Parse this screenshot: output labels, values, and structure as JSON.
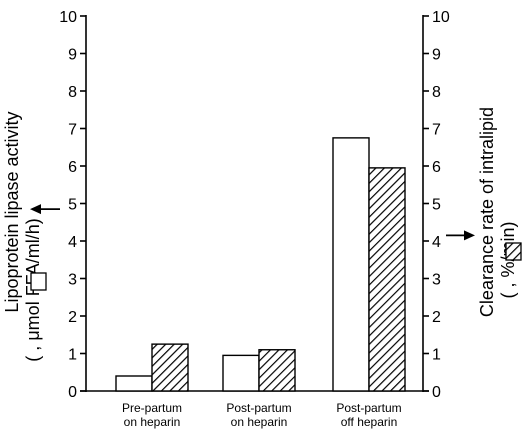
{
  "chart_data": {
    "type": "bar",
    "categories": [
      [
        "Pre-partum",
        "on heparin"
      ],
      [
        "Post-partum",
        "on heparin"
      ],
      [
        "Post-partum",
        "off heparin"
      ]
    ],
    "series": [
      {
        "name": "Lipoprotein lipase activity",
        "pattern": "open",
        "axis": "left",
        "values": [
          0.4,
          0.95,
          6.75
        ]
      },
      {
        "name": "Clearance rate of intralipid",
        "pattern": "hatched",
        "axis": "right",
        "values": [
          1.25,
          1.1,
          5.95
        ]
      }
    ],
    "ylim": [
      0,
      10
    ],
    "yticks": [
      0,
      1,
      2,
      3,
      4,
      5,
      6,
      7,
      8,
      9,
      10
    ],
    "ylabel_left": {
      "before": "Lipoprotein lipase activity",
      "pre": "(",
      "post": ", μmol FFA/ml/h)"
    },
    "ylabel_right": {
      "before": "Clearance rate of intralipid",
      "pre": "(",
      "post": ", %/min)"
    },
    "arrows": [
      {
        "axis": "left",
        "value": 4.85,
        "direction": "left"
      },
      {
        "axis": "right",
        "value": 4.15,
        "direction": "right"
      }
    ],
    "grid": false,
    "legend": "none"
  }
}
